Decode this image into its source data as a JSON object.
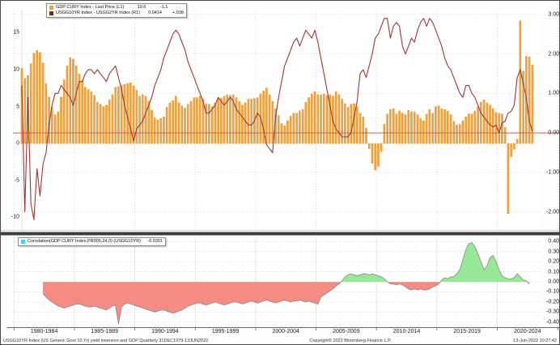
{
  "top_panel": {
    "legend": {
      "rows": [
        {
          "swatch_color": "#F2A43A",
          "label": "GDP CURY Index - Last Price (L1)",
          "value": "10.6",
          "change": "-1.1"
        },
        {
          "swatch_color": "#8E1A1A",
          "label": "USGG10YR Index - USGG2YR Index (R1)",
          "value": "0.0414",
          "change": "+.038"
        }
      ]
    },
    "left_axis": {
      "tick_labels": [
        "15",
        "10",
        "5",
        "0",
        "-5",
        "-10"
      ],
      "tick_values": [
        15,
        10,
        5,
        0,
        -5,
        -10
      ]
    },
    "right_axis": {
      "tick_labels": [
        "3.00",
        "2.00",
        "1.00",
        "0.00",
        "-1.00",
        "-2.00"
      ],
      "tick_values": [
        3,
        2,
        1,
        0,
        -1,
        -2
      ]
    }
  },
  "bottom_panel": {
    "legend": {
      "swatch_color": "#3FD9D2",
      "label": "Correlation(GDP CURY Index,PR005,24,0) (USGG10YR)",
      "value": "-0.0201"
    },
    "right_axis": {
      "tick_labels": [
        "0.40",
        "0.30",
        "0.20",
        "0.10",
        "0.00",
        "-0.10",
        "-0.20",
        "-0.30",
        "-0.40"
      ],
      "tick_values": [
        0.4,
        0.3,
        0.2,
        0.1,
        0,
        -0.1,
        -0.2,
        -0.3,
        -0.4
      ]
    }
  },
  "x_axis": {
    "labels": [
      "1980-1984",
      "1985-1989",
      "1990-1994",
      "1995-1999",
      "2000-2004",
      "2005-2009",
      "2010-2014",
      "2015-2019",
      "2020-2024"
    ],
    "boundary_years": [
      1979.6,
      1984.6,
      1989.6,
      1994.6,
      1999.6,
      2004.6,
      2009.6,
      2014.6,
      2019.6,
      2024.6
    ]
  },
  "footer": {
    "left": "USGG10YR Index (US Generic Govt 10 Yr) yield inversion and GDP  Quarterly 31DEC1979-13JUN2022",
    "copyright": "Copyright© 2022 Bloomberg Finance L.P.",
    "timestamp": "13-Jun-2022 10:27:42"
  },
  "colors": {
    "bar": "#F2A43A",
    "bar_edge": "#D8881E",
    "spread_line": "#A03539",
    "zero_line": "#C9614F",
    "corr_line": "#8F8F8F",
    "corr_pos": "#96E896",
    "corr_neg": "#F58C84",
    "grid": "#C9C9C9",
    "vgrid_bottom": "#DEDEDE",
    "divider": "#3C3C3C",
    "axis_line": "#666666"
  },
  "chart_data": [
    {
      "type": "bar",
      "title": "GDP growth vs 10Y-2Y yield spread",
      "x_step": 0.25,
      "ylim_left": [
        -11.7,
        18.2
      ],
      "ylim_right": [
        -2.46,
        3.14
      ],
      "grid": true,
      "legend_position": "top-left",
      "series": [
        {
          "name": "GDP CURY Index - Last Price (L1)",
          "type": "bar",
          "axis": "left",
          "x_start": 1980.25,
          "values": [
            10.2,
            8.8,
            9.2,
            10.8,
            12.2,
            12.6,
            12.3,
            10.9,
            8.1,
            6.3,
            4.9,
            3.9,
            4.3,
            6.3,
            8.6,
            10.5,
            11.6,
            11.4,
            10.5,
            9.4,
            8.5,
            7.6,
            7.3,
            7.0,
            6.5,
            5.6,
            5.3,
            5.0,
            5.2,
            5.9,
            6.6,
            7.6,
            7.7,
            7.9,
            8.0,
            8.1,
            8.2,
            7.8,
            7.2,
            6.4,
            6.6,
            6.4,
            5.7,
            4.5,
            3.5,
            3.2,
            3.4,
            3.6,
            4.9,
            5.5,
            5.8,
            6.4,
            5.5,
            5.1,
            4.8,
            5.3,
            5.7,
            6.2,
            6.2,
            6.4,
            6.0,
            5.4,
            5.3,
            5.0,
            5.5,
            6.0,
            6.1,
            6.4,
            6.6,
            6.5,
            6.6,
            6.2,
            5.7,
            5.2,
            5.5,
            6.0,
            6.0,
            6.1,
            6.2,
            6.7,
            7.1,
            7.5,
            6.6,
            5.7,
            4.7,
            3.8,
            2.7,
            2.4,
            3.1,
            3.7,
            4.1,
            4.1,
            4.4,
            4.6,
            5.6,
            6.2,
            6.7,
            7.0,
            6.6,
            6.6,
            6.7,
            6.5,
            6.6,
            6.4,
            7.0,
            6.6,
            6.0,
            5.4,
            4.9,
            5.3,
            5.4,
            5.0,
            4.1,
            3.6,
            2.1,
            -0.7,
            -2.7,
            -3.6,
            -3.1,
            -1.1,
            2.6,
            4.0,
            4.6,
            4.7,
            4.0,
            4.4,
            4.1,
            3.9,
            4.5,
            4.3,
            4.3,
            3.9,
            3.4,
            3.1,
            4.0,
            4.6,
            4.1,
            5.0,
            5.1,
            4.7,
            4.6,
            4.4,
            3.9,
            3.0,
            2.5,
            2.6,
            3.1,
            3.6,
            4.0,
            4.0,
            4.4,
            5.0,
            5.6,
            5.9,
            5.5,
            5.2,
            4.7,
            4.2,
            4.1,
            4.0,
            2.2,
            -9.5,
            -1.8,
            -0.8,
            0.6,
            16.6,
            9.8,
            11.8,
            11.7,
            10.6
          ]
        },
        {
          "name": "USGG10YR Index - USGG2YR Index (R1)",
          "type": "line",
          "axis": "right",
          "x_start": 1980.25,
          "values": [
            1.2,
            -2.0,
            0.9,
            -1.8,
            -2.2,
            -0.9,
            -1.6,
            -0.8,
            -0.5,
            0.2,
            0.7,
            1.0,
            1.0,
            1.2,
            1.1,
            1.0,
            0.9,
            0.7,
            1.0,
            1.3,
            1.3,
            1.5,
            1.6,
            1.6,
            1.5,
            1.6,
            1.5,
            1.4,
            1.3,
            1.5,
            1.6,
            1.7,
            1.4,
            1.1,
            0.7,
            0.4,
            0.1,
            -0.2,
            0.1,
            0.2,
            0.3,
            0.5,
            0.7,
            0.9,
            1.2,
            1.4,
            1.6,
            1.9,
            2.1,
            2.3,
            2.5,
            2.6,
            2.5,
            2.3,
            2.1,
            1.8,
            1.6,
            1.4,
            1.2,
            1.0,
            0.8,
            0.5,
            0.5,
            0.6,
            0.7,
            0.9,
            0.8,
            0.7,
            0.8,
            0.9,
            0.8,
            0.6,
            0.5,
            0.4,
            0.3,
            0.2,
            0.2,
            0.3,
            0.5,
            0.4,
            0.1,
            -0.3,
            -0.4,
            -0.5,
            0.4,
            0.9,
            1.3,
            1.7,
            1.9,
            2.1,
            2.3,
            2.4,
            2.2,
            2.4,
            2.6,
            2.5,
            2.4,
            2.6,
            2.3,
            1.9,
            1.5,
            1.1,
            0.7,
            0.3,
            0.1,
            0.0,
            -0.1,
            -0.1,
            -0.1,
            0.0,
            0.4,
            0.8,
            1.5,
            1.6,
            1.4,
            1.7,
            2.0,
            2.4,
            2.5,
            2.7,
            2.9,
            2.9,
            2.4,
            2.7,
            2.8,
            2.7,
            2.2,
            2.0,
            2.2,
            2.4,
            2.3,
            2.6,
            2.8,
            2.9,
            2.7,
            2.9,
            2.8,
            2.6,
            2.4,
            2.2,
            1.9,
            1.7,
            1.6,
            1.4,
            1.2,
            1.0,
            0.9,
            1.2,
            1.2,
            1.0,
            0.9,
            0.7,
            0.5,
            0.4,
            0.3,
            0.2,
            0.15,
            0.2,
            0.0,
            0.25,
            0.3,
            0.5,
            0.55,
            0.7,
            1.4,
            1.6,
            1.25,
            0.9,
            0.3,
            0.04
          ]
        }
      ]
    },
    {
      "type": "area",
      "title": "Correlation panel",
      "x_step": 0.25,
      "ylim": [
        -0.45,
        0.443
      ],
      "grid": true,
      "series": [
        {
          "name": "Correlation(GDP CURY Index,PR005,24,0) (USGG10YR)",
          "type": "area",
          "axis": "right",
          "x_start": 1982.0,
          "values": [
            -0.12,
            -0.15,
            -0.18,
            -0.2,
            -0.22,
            -0.24,
            -0.25,
            -0.26,
            -0.25,
            -0.24,
            -0.23,
            -0.22,
            -0.22,
            -0.23,
            -0.24,
            -0.25,
            -0.25,
            -0.24,
            -0.25,
            -0.26,
            -0.27,
            -0.28,
            -0.26,
            -0.24,
            -0.23,
            -0.42,
            -0.25,
            -0.22,
            -0.21,
            -0.22,
            -0.23,
            -0.24,
            -0.25,
            -0.26,
            -0.27,
            -0.28,
            -0.29,
            -0.3,
            -0.29,
            -0.28,
            -0.28,
            -0.29,
            -0.3,
            -0.31,
            -0.3,
            -0.29,
            -0.28,
            -0.26,
            -0.24,
            -0.23,
            -0.22,
            -0.21,
            -0.21,
            -0.22,
            -0.23,
            -0.22,
            -0.21,
            -0.2,
            -0.21,
            -0.22,
            -0.23,
            -0.22,
            -0.21,
            -0.2,
            -0.2,
            -0.21,
            -0.22,
            -0.21,
            -0.2,
            -0.19,
            -0.2,
            -0.21,
            -0.2,
            -0.19,
            -0.18,
            -0.19,
            -0.2,
            -0.21,
            -0.2,
            -0.19,
            -0.18,
            -0.19,
            -0.2,
            -0.19,
            -0.19,
            -0.18,
            -0.19,
            -0.2,
            -0.19,
            -0.2,
            -0.21,
            -0.22,
            -0.15,
            -0.13,
            -0.11,
            -0.09,
            -0.07,
            -0.04,
            -0.02,
            0.01,
            0.05,
            0.07,
            0.08,
            0.07,
            0.06,
            0.07,
            0.08,
            0.08,
            0.07,
            0.08,
            0.07,
            0.06,
            0.05,
            0.03,
            0.0,
            -0.02,
            -0.02,
            -0.03,
            -0.02,
            -0.03,
            -0.05,
            -0.07,
            -0.08,
            -0.07,
            -0.08,
            -0.07,
            -0.08,
            -0.08,
            -0.07,
            -0.05,
            -0.04,
            -0.02,
            0.02,
            0.04,
            0.03,
            0.05,
            0.05,
            0.08,
            0.12,
            0.22,
            0.32,
            0.38,
            0.39,
            0.35,
            0.28,
            0.2,
            0.12,
            0.16,
            0.24,
            0.26,
            0.2,
            0.12,
            0.06,
            0.04,
            0.03,
            0.03,
            0.04,
            0.08,
            0.05,
            0.02,
            0.01,
            -0.02
          ]
        }
      ]
    }
  ]
}
